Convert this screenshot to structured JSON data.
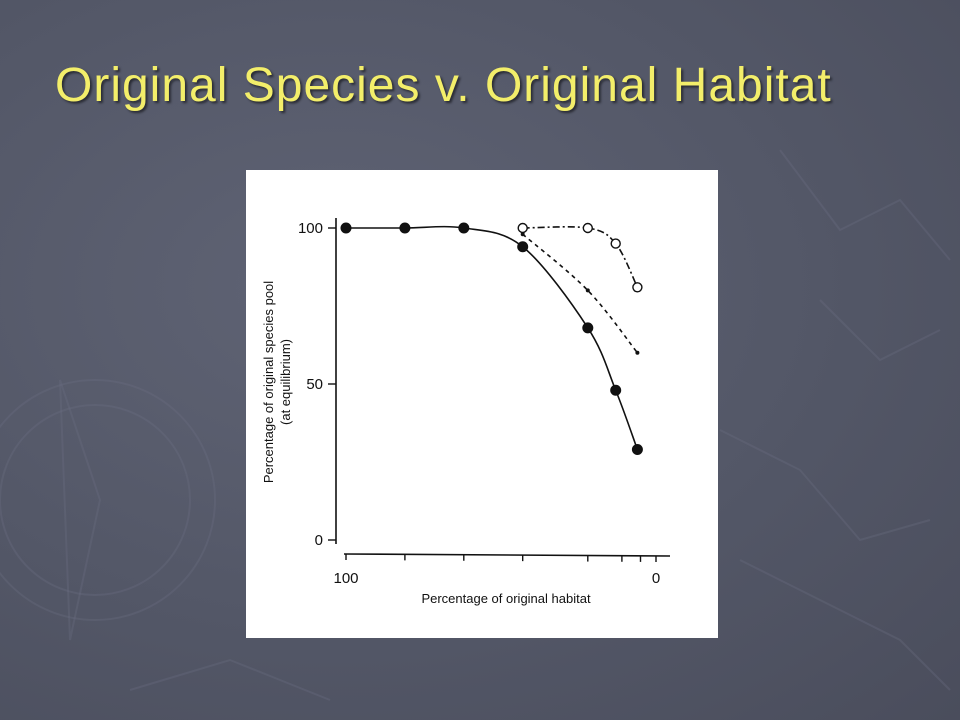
{
  "slide": {
    "title": "Original Species v. Original Habitat"
  },
  "colors": {
    "background": "#535767",
    "title": "#f3ee6a",
    "panel": "#ffffff",
    "ink": "#111111"
  },
  "chart_data": {
    "type": "line",
    "title": "",
    "xlabel": "Percentage of original habitat",
    "ylabel": "Percentage of original species pool",
    "ylabel_sub": "(at equilibrium)",
    "xlim": [
      100,
      0
    ],
    "ylim": [
      0,
      100
    ],
    "x_reversed": true,
    "grid": false,
    "legend": "none",
    "x_ticks": [
      100,
      81,
      62,
      43,
      22,
      11,
      5,
      0
    ],
    "x_tick_labels": [
      {
        "value": 100,
        "label": "100"
      },
      {
        "value": 0,
        "label": "0"
      }
    ],
    "y_ticks": [
      {
        "value": 100,
        "label": "100"
      },
      {
        "value": 50,
        "label": "50"
      },
      {
        "value": 0,
        "label": "0"
      }
    ],
    "series": [
      {
        "marker": "filled-circle",
        "line": "solid",
        "x": [
          100,
          81,
          62,
          43,
          22,
          13,
          6
        ],
        "y": [
          100,
          100,
          100,
          94,
          68,
          48,
          29
        ]
      },
      {
        "marker": "open-circle",
        "line": "dash-dot",
        "x": [
          43,
          22,
          13,
          6
        ],
        "y": [
          100,
          100,
          95,
          81
        ]
      },
      {
        "marker": "small-dot",
        "line": "dashed",
        "x": [
          43,
          22,
          6
        ],
        "y": [
          98,
          80,
          60
        ]
      }
    ]
  }
}
